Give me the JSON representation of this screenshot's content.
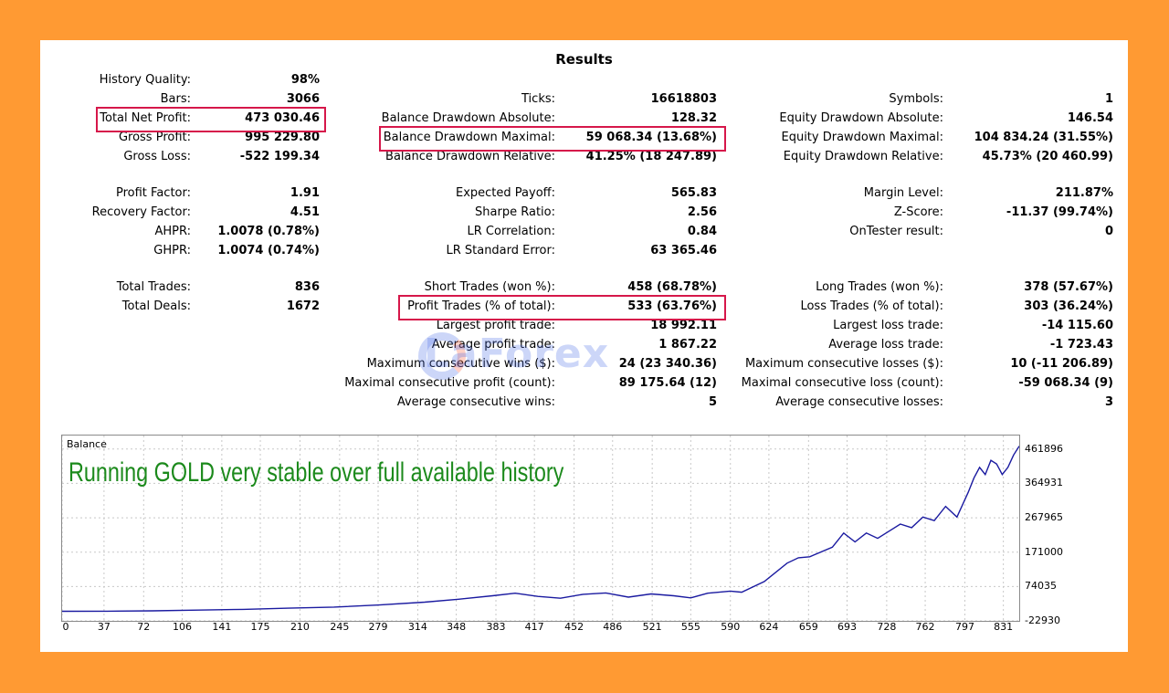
{
  "title": "Results",
  "col1": [
    {
      "label": "History Quality:",
      "value": "98%"
    },
    {
      "label": "Bars:",
      "value": "3066"
    },
    {
      "label": "Total Net Profit:",
      "value": "473 030.46"
    },
    {
      "label": "Gross Profit:",
      "value": "995 229.80"
    },
    {
      "label": "Gross Loss:",
      "value": "-522 199.34"
    },
    {
      "label": "Profit Factor:",
      "value": "1.91"
    },
    {
      "label": "Recovery Factor:",
      "value": "4.51"
    },
    {
      "label": "AHPR:",
      "value": "1.0078 (0.78%)"
    },
    {
      "label": "GHPR:",
      "value": "1.0074 (0.74%)"
    },
    {
      "label": "Total Trades:",
      "value": "836"
    },
    {
      "label": "Total Deals:",
      "value": "1672"
    }
  ],
  "col2": [
    {
      "label": "Ticks:",
      "value": "16618803"
    },
    {
      "label": "Balance Drawdown Absolute:",
      "value": "128.32"
    },
    {
      "label": "Balance Drawdown Maximal:",
      "value": "59 068.34 (13.68%)"
    },
    {
      "label": "Balance Drawdown Relative:",
      "value": "41.25% (18 247.89)"
    },
    {
      "label": "Expected Payoff:",
      "value": "565.83"
    },
    {
      "label": "Sharpe Ratio:",
      "value": "2.56"
    },
    {
      "label": "LR Correlation:",
      "value": "0.84"
    },
    {
      "label": "LR Standard Error:",
      "value": "63 365.46"
    },
    {
      "label": "Short Trades (won %):",
      "value": "458 (68.78%)"
    },
    {
      "label": "Profit Trades (% of total):",
      "value": "533 (63.76%)"
    },
    {
      "label": "Largest profit trade:",
      "value": "18 992.11"
    },
    {
      "label": "Average profit trade:",
      "value": "1 867.22"
    },
    {
      "label": "Maximum consecutive wins ($):",
      "value": "24 (23 340.36)"
    },
    {
      "label": "Maximal consecutive profit (count):",
      "value": "89 175.64 (12)"
    },
    {
      "label": "Average consecutive wins:",
      "value": "5"
    }
  ],
  "col3": [
    {
      "label": "Symbols:",
      "value": "1"
    },
    {
      "label": "Equity Drawdown Absolute:",
      "value": "146.54"
    },
    {
      "label": "Equity Drawdown Maximal:",
      "value": "104 834.24 (31.55%)"
    },
    {
      "label": "Equity Drawdown Relative:",
      "value": "45.73% (20 460.99)"
    },
    {
      "label": "Margin Level:",
      "value": "211.87%"
    },
    {
      "label": "Z-Score:",
      "value": "-11.37 (99.74%)"
    },
    {
      "label": "OnTester result:",
      "value": "0"
    },
    {
      "label": "Long Trades (won %):",
      "value": "378 (57.67%)"
    },
    {
      "label": "Loss Trades (% of total):",
      "value": "303 (36.24%)"
    },
    {
      "label": "Largest loss trade:",
      "value": "-14 115.60"
    },
    {
      "label": "Average loss trade:",
      "value": "-1 723.43"
    },
    {
      "label": "Maximum consecutive losses ($):",
      "value": "10 (-11 206.89)"
    },
    {
      "label": "Maximal consecutive loss (count):",
      "value": "-59 068.34 (9)"
    },
    {
      "label": "Average consecutive losses:",
      "value": "3"
    }
  ],
  "watermark": "LaForex",
  "chart_data": {
    "type": "line",
    "title": "Balance",
    "annotation": "Running GOLD very stable over full available history",
    "x_ticks": [
      "0",
      "37",
      "72",
      "106",
      "141",
      "175",
      "210",
      "245",
      "279",
      "314",
      "348",
      "383",
      "417",
      "452",
      "486",
      "521",
      "555",
      "590",
      "624",
      "659",
      "693",
      "728",
      "762",
      "797",
      "831"
    ],
    "y_ticks": [
      "461896",
      "364931",
      "267965",
      "171000",
      "74035",
      "-22930"
    ],
    "xlim": [
      0,
      845
    ],
    "ylim": [
      -22930,
      500000
    ],
    "grid": true,
    "line_color": "#1A1AA0",
    "series": [
      {
        "x": [
          0,
          40,
          80,
          120,
          160,
          200,
          240,
          280,
          320,
          350,
          380,
          400,
          420,
          440,
          460,
          480,
          500,
          520,
          540,
          555,
          570,
          590,
          600,
          620,
          640,
          650,
          660,
          680,
          690,
          700,
          710,
          720,
          730,
          740,
          750,
          760,
          770,
          780,
          790,
          800,
          805,
          810,
          815,
          820,
          825,
          830,
          835,
          840,
          845
        ],
        "y": [
          4000,
          4500,
          5500,
          7500,
          9500,
          13000,
          16000,
          22000,
          30000,
          38000,
          48000,
          55000,
          46000,
          41000,
          52000,
          56000,
          44000,
          53000,
          48000,
          42000,
          55000,
          61000,
          58000,
          88000,
          140000,
          155000,
          158000,
          185000,
          225000,
          200000,
          225000,
          210000,
          230000,
          250000,
          240000,
          270000,
          260000,
          300000,
          270000,
          340000,
          380000,
          410000,
          390000,
          430000,
          420000,
          390000,
          410000,
          445000,
          470000
        ]
      }
    ]
  }
}
